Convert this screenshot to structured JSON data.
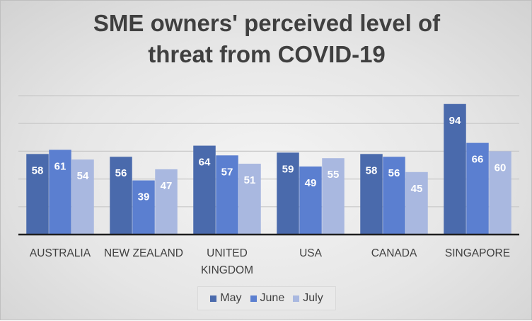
{
  "chart_data": {
    "type": "bar",
    "title": [
      "SME owners' perceived level of",
      "threat from COVID-19"
    ],
    "xlabel": "",
    "ylabel": "",
    "categories": [
      "AUSTRALIA",
      "NEW ZEALAND",
      "UNITED KINGDOM",
      "USA",
      "CANADA",
      "SINGAPORE"
    ],
    "category_lines": [
      [
        "AUSTRALIA"
      ],
      [
        "NEW ZEALAND"
      ],
      [
        "UNITED",
        "KINGDOM"
      ],
      [
        "USA"
      ],
      [
        "CANADA"
      ],
      [
        "SINGAPORE"
      ]
    ],
    "series": [
      {
        "name": "May",
        "values": [
          58,
          56,
          64,
          59,
          58,
          94
        ],
        "color": "#4a6aac"
      },
      {
        "name": "June",
        "values": [
          61,
          39,
          57,
          49,
          56,
          66
        ],
        "color": "#5b7fd0"
      },
      {
        "name": "July",
        "values": [
          54,
          47,
          51,
          55,
          45,
          60
        ],
        "color": "#a9b8e0"
      }
    ],
    "ylim": [
      0,
      100
    ],
    "grid": true,
    "legend_position": "bottom",
    "data_labels": true
  }
}
